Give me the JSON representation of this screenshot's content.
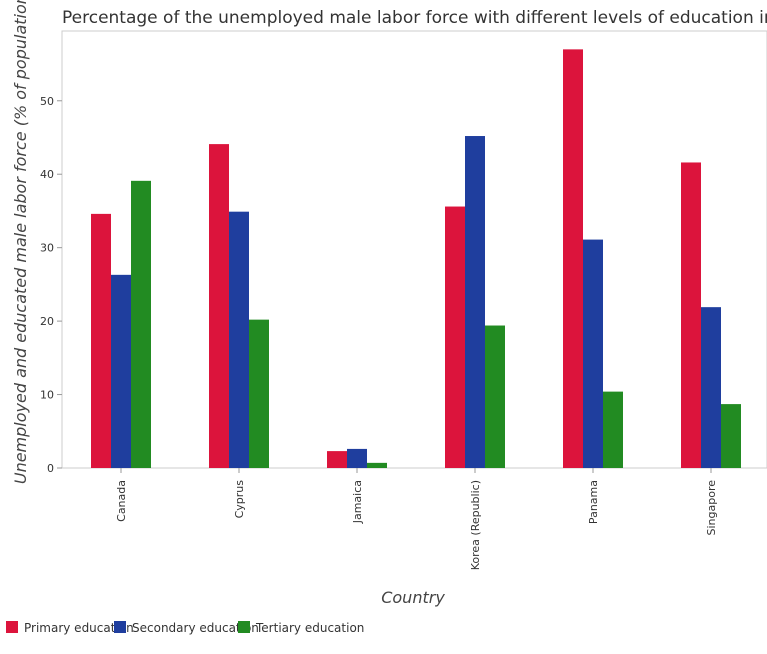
{
  "chart_data": {
    "type": "bar",
    "title": "Percentage of the unemployed male labor force with different levels of education in c",
    "xlabel": "Country",
    "ylabel": "Unemployed and educated male labor force (% of population)",
    "categories": [
      "Canada",
      "Cyprus",
      "Jamaica",
      "Korea (Republic)",
      "Panama",
      "Singapore"
    ],
    "series": [
      {
        "name": "Primary education",
        "color": "#dc143c",
        "values": [
          34.6,
          44.1,
          2.3,
          35.6,
          57.0,
          41.6
        ]
      },
      {
        "name": "Secondary education",
        "color": "#1f3e9e",
        "values": [
          26.3,
          34.9,
          2.6,
          45.2,
          31.1,
          21.9
        ]
      },
      {
        "name": "Tertiary education",
        "color": "#228b22",
        "values": [
          39.1,
          20.2,
          0.7,
          19.4,
          10.4,
          8.7
        ]
      }
    ],
    "y_ticks": [
      0,
      10,
      20,
      30,
      40,
      50
    ],
    "ylim": [
      0,
      59.5
    ],
    "grid": false,
    "legend_position": "bottom-left"
  }
}
